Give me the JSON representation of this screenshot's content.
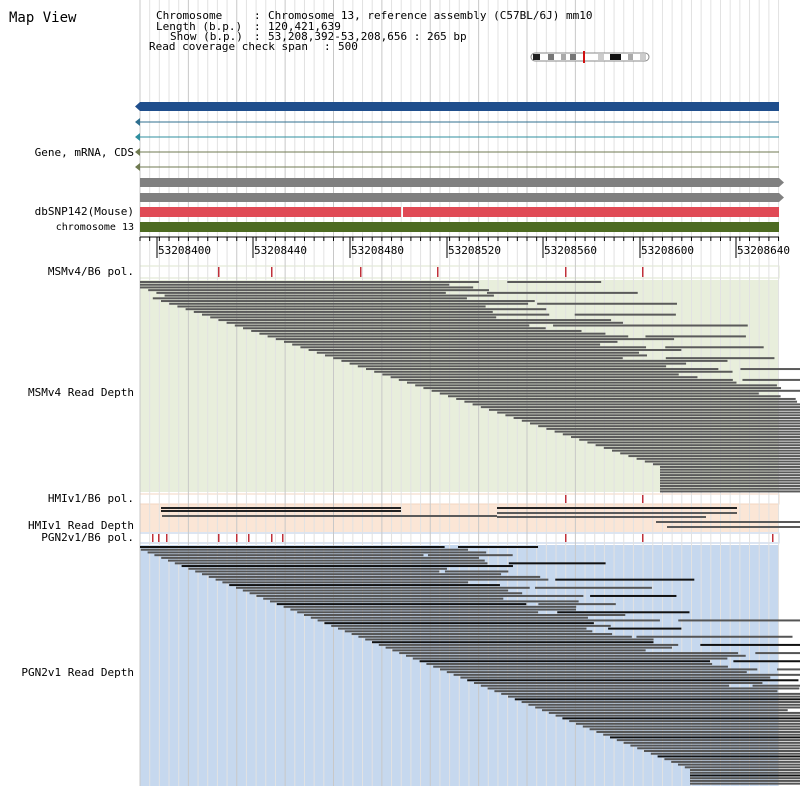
{
  "app": {
    "title": "Map View"
  },
  "info": {
    "chromosome_key": "Chromosome",
    "chromosome_value": "Chromosome 13, reference assembly (C57BL/6J) mm10",
    "length_key": "Length (b.p.)",
    "length_value": "120,421,639",
    "show_key": "Show (b.p.)",
    "show_value": "53,208,392-53,208,656 : 265 bp",
    "coverage_key": "Read coverage check span",
    "coverage_value": "500"
  },
  "tracks": {
    "gene": "Gene, mRNA, CDS",
    "dbsnp": "dbSNP142(Mouse)",
    "chromosome": "chromosome 13",
    "msm_pol": "MSMv4/B6 pol.",
    "msm_depth": "MSMv4 Read Depth",
    "hmi_pol": "HMIv1/B6 pol.",
    "hmi_depth": "HMIv1 Read Depth",
    "pgn_pol": "PGN2v1/B6 pol.",
    "pgn_depth": "PGN2v1 Read Depth"
  },
  "ruler": {
    "ticks": [
      "53208400",
      "53208440",
      "53208480",
      "53208520",
      "53208560",
      "53208600",
      "53208640"
    ]
  },
  "colors": {
    "gene_main": "#1f4e8c",
    "gene_minor": "#2f6f8f",
    "gray_bar": "#808080",
    "snp": "#e04a55",
    "chromosome": "#4d6b22",
    "msm_bg": "#e8eedc",
    "hmi_bg": "#fbe6d6",
    "pgn_bg": "#c6d8ee",
    "pol_marker": "#c0303a"
  }
}
